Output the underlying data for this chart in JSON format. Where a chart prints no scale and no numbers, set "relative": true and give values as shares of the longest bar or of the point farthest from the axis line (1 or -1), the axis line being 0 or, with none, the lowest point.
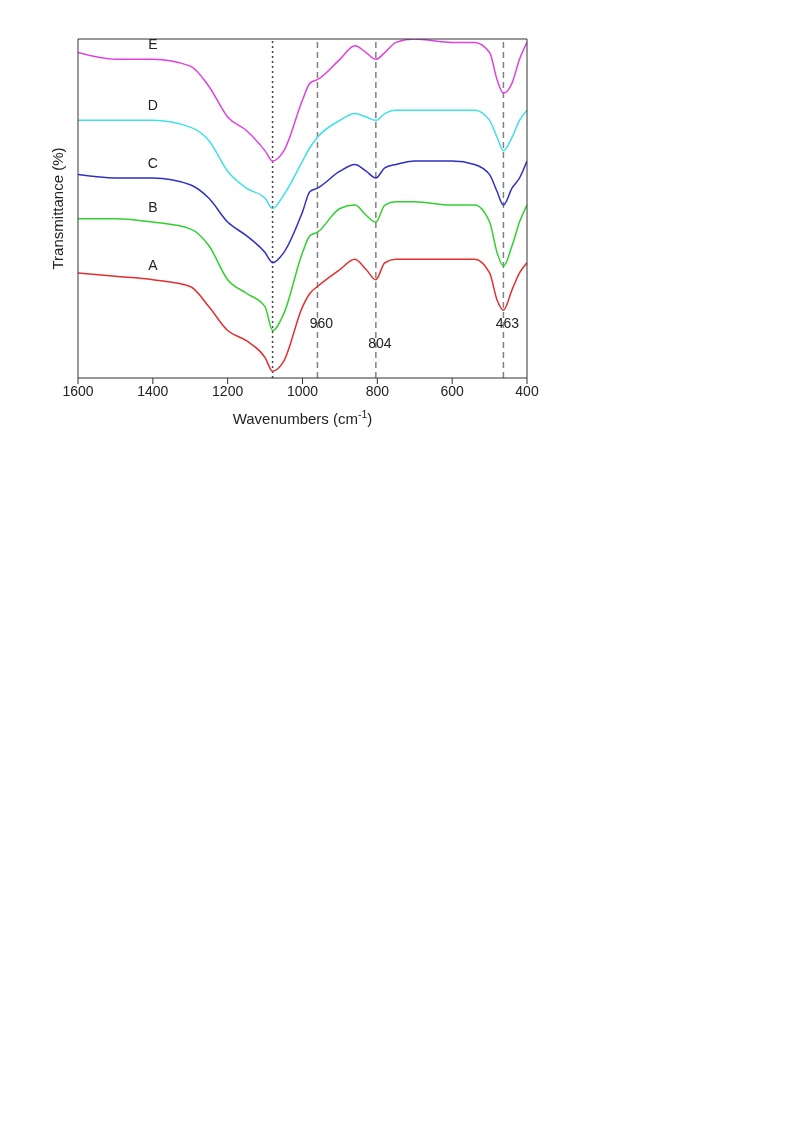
{
  "chart_data": {
    "type": "line",
    "xlabel": "Wavenumbers (cm$^{-1}$)",
    "ylabel": "Transmittance (%)",
    "relative": true,
    "x": [
      1600,
      1500,
      1400,
      1300,
      1250,
      1200,
      1150,
      1100,
      1080,
      1050,
      1000,
      980,
      960,
      900,
      860,
      830,
      804,
      780,
      750,
      700,
      600,
      540,
      500,
      480,
      463,
      440,
      420,
      400
    ],
    "xlim": [
      1600,
      400
    ],
    "xticks": [
      1600,
      1400,
      1200,
      1000,
      800,
      600,
      400
    ],
    "series": [
      {
        "name": "E",
        "color": "#e040e0",
        "values": [
          0.96,
          0.94,
          0.94,
          0.92,
          0.86,
          0.77,
          0.73,
          0.67,
          0.64,
          0.67,
          0.82,
          0.87,
          0.88,
          0.94,
          0.98,
          0.96,
          0.94,
          0.96,
          0.99,
          1.0,
          0.99,
          0.99,
          0.96,
          0.88,
          0.84,
          0.87,
          0.94,
          0.99
        ]
      },
      {
        "name": "D",
        "color": "#40e0e8",
        "values": [
          0.76,
          0.76,
          0.76,
          0.74,
          0.7,
          0.61,
          0.56,
          0.53,
          0.5,
          0.54,
          0.64,
          0.68,
          0.71,
          0.76,
          0.78,
          0.77,
          0.76,
          0.78,
          0.79,
          0.79,
          0.79,
          0.79,
          0.76,
          0.71,
          0.67,
          0.71,
          0.76,
          0.79
        ]
      },
      {
        "name": "C",
        "color": "#3030c0",
        "values": [
          0.6,
          0.59,
          0.59,
          0.57,
          0.53,
          0.46,
          0.42,
          0.37,
          0.34,
          0.37,
          0.49,
          0.55,
          0.56,
          0.61,
          0.63,
          0.61,
          0.59,
          0.62,
          0.63,
          0.64,
          0.64,
          0.63,
          0.6,
          0.55,
          0.51,
          0.56,
          0.59,
          0.64
        ]
      },
      {
        "name": "B",
        "color": "#30d030",
        "values": [
          0.47,
          0.47,
          0.46,
          0.44,
          0.39,
          0.29,
          0.25,
          0.21,
          0.14,
          0.19,
          0.37,
          0.42,
          0.43,
          0.5,
          0.51,
          0.48,
          0.46,
          0.51,
          0.52,
          0.52,
          0.51,
          0.51,
          0.46,
          0.37,
          0.33,
          0.39,
          0.46,
          0.51
        ]
      },
      {
        "name": "A",
        "color": "#e03030",
        "values": [
          0.31,
          0.3,
          0.29,
          0.27,
          0.21,
          0.14,
          0.11,
          0.06,
          0.02,
          0.05,
          0.21,
          0.25,
          0.27,
          0.32,
          0.35,
          0.32,
          0.29,
          0.34,
          0.35,
          0.35,
          0.35,
          0.35,
          0.31,
          0.23,
          0.2,
          0.26,
          0.31,
          0.34
        ]
      }
    ],
    "ref_lines": [
      {
        "axis": "x",
        "value": 1080,
        "color": "#444444",
        "line_style": "dotted"
      },
      {
        "axis": "x",
        "value": 960,
        "label": "960",
        "color": "#808080",
        "line_style": "dashed"
      },
      {
        "axis": "x",
        "value": 804,
        "label": "804",
        "color": "#808080",
        "line_style": "dashed"
      },
      {
        "axis": "x",
        "value": 463,
        "label": "463",
        "color": "#808080",
        "line_style": "dashed"
      }
    ],
    "grid": false,
    "marker": "none",
    "line_style": "solid"
  }
}
